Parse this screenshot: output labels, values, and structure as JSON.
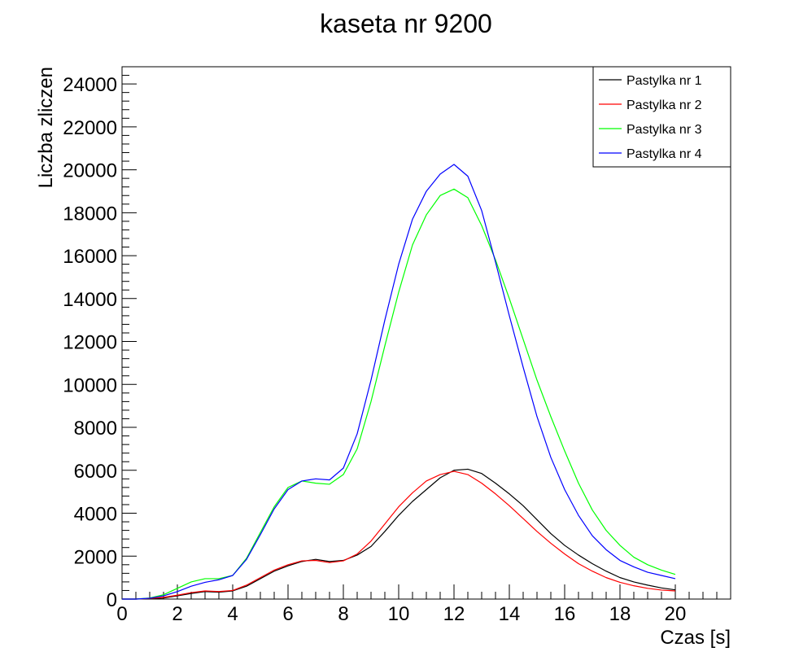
{
  "chart_data": {
    "type": "line",
    "title": "kaseta nr 9200",
    "xlabel": "Czas [s]",
    "ylabel": "Liczba zliczen",
    "xlim": [
      0,
      22
    ],
    "ylim": [
      0,
      24800
    ],
    "xticks": [
      0,
      2,
      4,
      6,
      8,
      10,
      12,
      14,
      16,
      18,
      20
    ],
    "yticks": [
      0,
      2000,
      4000,
      6000,
      8000,
      10000,
      12000,
      14000,
      16000,
      18000,
      20000,
      22000,
      24000
    ],
    "grid": false,
    "legend_position": "top-right",
    "series": [
      {
        "name": "Pastylka nr 1",
        "color": "#000000",
        "x": [
          0,
          0.5,
          1,
          1.5,
          2,
          2.5,
          3,
          3.5,
          4,
          4.5,
          5,
          5.5,
          6,
          6.5,
          7,
          7.5,
          8,
          8.5,
          9,
          9.5,
          10,
          10.5,
          11,
          11.5,
          12,
          12.5,
          13,
          13.5,
          14,
          14.5,
          15,
          15.5,
          16,
          16.5,
          17,
          17.5,
          18,
          18.5,
          19,
          19.5,
          20
        ],
        "y": [
          0,
          0,
          20,
          50,
          150,
          260,
          350,
          320,
          380,
          600,
          950,
          1300,
          1550,
          1750,
          1850,
          1750,
          1800,
          2050,
          2450,
          3150,
          3900,
          4550,
          5100,
          5650,
          6000,
          6050,
          5850,
          5400,
          4900,
          4350,
          3700,
          3050,
          2500,
          2050,
          1650,
          1300,
          1000,
          800,
          650,
          520,
          430
        ]
      },
      {
        "name": "Pastylka nr 2",
        "color": "#ff0000",
        "x": [
          0,
          0.5,
          1,
          1.5,
          2,
          2.5,
          3,
          3.5,
          4,
          4.5,
          5,
          5.5,
          6,
          6.5,
          7,
          7.5,
          8,
          8.5,
          9,
          9.5,
          10,
          10.5,
          11,
          11.5,
          12,
          12.5,
          13,
          13.5,
          14,
          14.5,
          15,
          15.5,
          16,
          16.5,
          17,
          17.5,
          18,
          18.5,
          19,
          19.5,
          20
        ],
        "y": [
          0,
          0,
          30,
          80,
          180,
          300,
          380,
          350,
          400,
          650,
          1000,
          1350,
          1600,
          1780,
          1800,
          1700,
          1780,
          2100,
          2700,
          3500,
          4300,
          4950,
          5500,
          5800,
          5950,
          5800,
          5400,
          4900,
          4350,
          3750,
          3150,
          2600,
          2100,
          1650,
          1300,
          1000,
          780,
          620,
          500,
          420,
          380
        ]
      },
      {
        "name": "Pastylka nr 3",
        "color": "#00ff00",
        "x": [
          0,
          0.5,
          1,
          1.5,
          2,
          2.5,
          3,
          3.5,
          4,
          4.5,
          5,
          5.5,
          6,
          6.5,
          7,
          7.5,
          8,
          8.5,
          9,
          9.5,
          10,
          10.5,
          11,
          11.5,
          12,
          12.5,
          13,
          13.5,
          14,
          14.5,
          15,
          15.5,
          16,
          16.5,
          17,
          17.5,
          18,
          18.5,
          19,
          19.5,
          20
        ],
        "y": [
          0,
          0,
          50,
          200,
          500,
          800,
          950,
          950,
          1100,
          1900,
          3100,
          4300,
          5200,
          5500,
          5400,
          5350,
          5800,
          7000,
          9200,
          11800,
          14300,
          16500,
          17900,
          18800,
          19100,
          18700,
          17400,
          15800,
          14000,
          12100,
          10200,
          8500,
          6900,
          5400,
          4150,
          3200,
          2500,
          1950,
          1600,
          1350,
          1150
        ]
      },
      {
        "name": "Pastylka nr 4",
        "color": "#0000ff",
        "x": [
          0,
          0.5,
          1,
          1.5,
          2,
          2.5,
          3,
          3.5,
          4,
          4.5,
          5,
          5.5,
          6,
          6.5,
          7,
          7.5,
          8,
          8.5,
          9,
          9.5,
          10,
          10.5,
          11,
          11.5,
          12,
          12.5,
          13,
          13.5,
          14,
          14.5,
          15,
          15.5,
          16,
          16.5,
          17,
          17.5,
          18,
          18.5,
          19,
          19.5,
          20
        ],
        "y": [
          0,
          0,
          40,
          150,
          350,
          600,
          780,
          900,
          1100,
          1850,
          3000,
          4200,
          5100,
          5500,
          5600,
          5550,
          6100,
          7700,
          10200,
          13000,
          15600,
          17700,
          19000,
          19800,
          20250,
          19700,
          18100,
          15700,
          13200,
          10800,
          8500,
          6600,
          5100,
          3900,
          2950,
          2300,
          1800,
          1500,
          1250,
          1100,
          950
        ]
      }
    ]
  }
}
